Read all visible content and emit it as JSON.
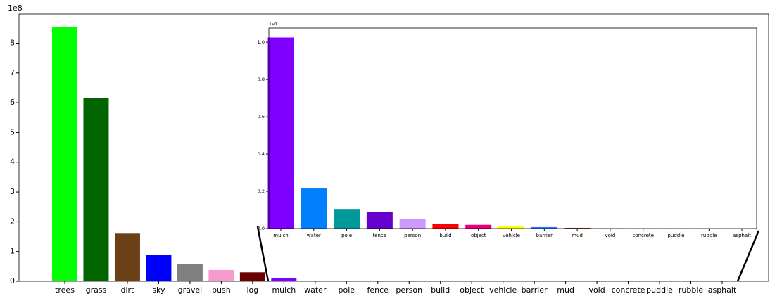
{
  "chart_data": [
    {
      "type": "bar",
      "categories": [
        "trees",
        "grass",
        "dirt",
        "sky",
        "gravel",
        "bush",
        "log",
        "mulch",
        "water",
        "pole",
        "fence",
        "person",
        "build",
        "object",
        "vehicle",
        "barrier",
        "mud",
        "void",
        "concrete",
        "puddle",
        "rubble",
        "asphalt"
      ],
      "values": [
        8.55,
        6.15,
        1.6,
        0.88,
        0.58,
        0.38,
        0.3,
        0.1025,
        0.0215,
        0.0105,
        0.0088,
        0.0052,
        0.0025,
        0.002,
        0.0013,
        0.0008,
        0.0004,
        5e-05,
        3e-05,
        2e-05,
        1e-05,
        1e-05
      ],
      "colors": [
        "#00ff00",
        "#006400",
        "#6b4016",
        "#0000ff",
        "#808080",
        "#f59bd0",
        "#6b0000",
        "#8000ff",
        "#0080ff",
        "#009999",
        "#6600cc",
        "#cc99ff",
        "#ff0000",
        "#e6007a",
        "#ffff00",
        "#3377ff",
        "#804020",
        "#000000",
        "#999999",
        "#66ccff",
        "#996633",
        "#333333"
      ],
      "ylim": [
        0,
        8.98
      ],
      "yticks": [
        0,
        1,
        2,
        3,
        4,
        5,
        6,
        7,
        8
      ],
      "offset_label": "1e8"
    },
    {
      "type": "bar",
      "categories": [
        "mulch",
        "water",
        "pole",
        "fence",
        "person",
        "build",
        "object",
        "vehicle",
        "barrier",
        "mud",
        "void",
        "concrete",
        "puddle",
        "rubble",
        "asphalt"
      ],
      "values": [
        1.025,
        0.215,
        0.105,
        0.088,
        0.052,
        0.025,
        0.02,
        0.013,
        0.008,
        0.004,
        0.0005,
        0.0003,
        0.0002,
        0.0001,
        0.0001
      ],
      "colors": [
        "#8000ff",
        "#0080ff",
        "#009999",
        "#6600cc",
        "#cc99ff",
        "#ff0000",
        "#e6007a",
        "#ffff00",
        "#3377ff",
        "#804020",
        "#000000",
        "#999999",
        "#66ccff",
        "#996633",
        "#333333"
      ],
      "ylim": [
        0,
        1.076
      ],
      "yticks": [
        {
          "value": 0,
          "label": "0.0"
        },
        0.2,
        0.4,
        0.6,
        0.8,
        {
          "value": 1,
          "label": "1.0"
        }
      ],
      "offset_label": "1e7"
    }
  ]
}
